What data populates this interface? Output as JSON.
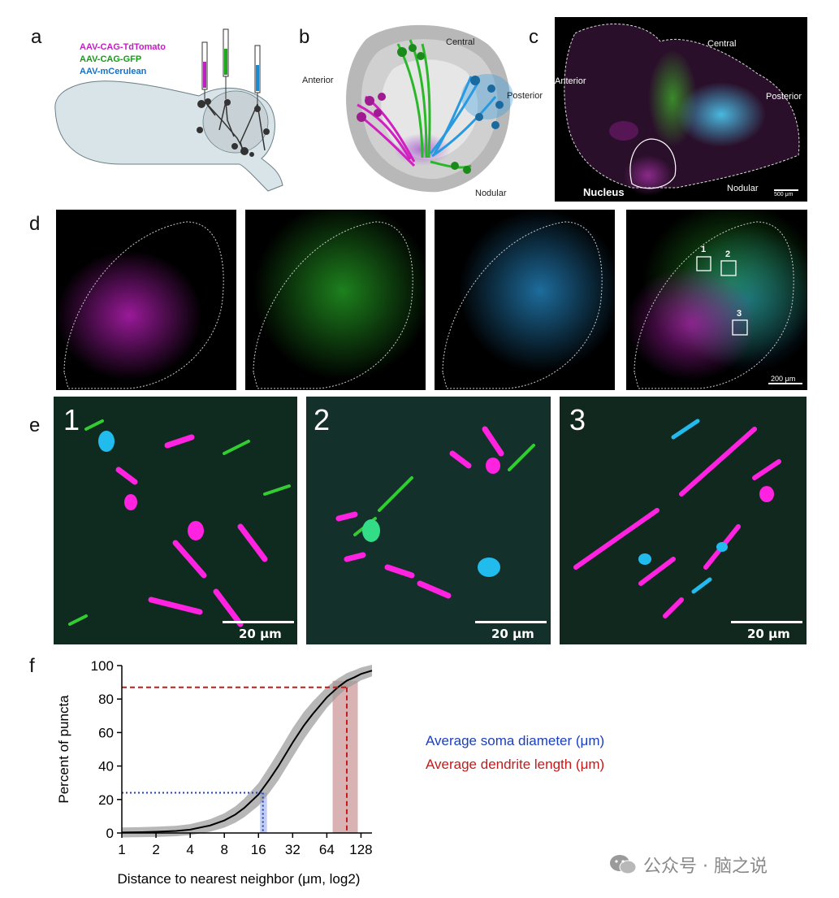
{
  "panels": {
    "a": "a",
    "b": "b",
    "c": "c",
    "d": "d",
    "e": "e",
    "f": "f"
  },
  "panel_a": {
    "legend": [
      {
        "text": "AAV-CAG-TdTomato",
        "color": "#c020c0"
      },
      {
        "text": "AAV-CAG-GFP",
        "color": "#1a9a1a"
      },
      {
        "text": "AAV-mCerulean",
        "color": "#1a70c0"
      }
    ]
  },
  "panel_b": {
    "anterior": "Anterior",
    "central": "Central",
    "posterior": "Posterior",
    "nodular": "Nodular"
  },
  "panel_c": {
    "anterior": "Anterior",
    "central": "Central",
    "posterior": "Posterior",
    "nodular": "Nodular",
    "nucleus": "Nucleus",
    "scale": "500 μm"
  },
  "panel_d": {
    "boxes": [
      "1",
      "2",
      "3"
    ],
    "scale": "200 μm"
  },
  "panel_e": {
    "insets": [
      "1",
      "2",
      "3"
    ],
    "scale": "20 μm"
  },
  "chart_data": {
    "type": "line",
    "xlabel": "Distance to nearest neighbor (μm, log2)",
    "ylabel": "Percent of puncta",
    "x_ticks": [
      "1",
      "2",
      "4",
      "8",
      "16",
      "32",
      "64",
      "128"
    ],
    "y_ticks": [
      "0",
      "20",
      "40",
      "60",
      "80",
      "100"
    ],
    "xlim": [
      1,
      160
    ],
    "ylim": [
      0,
      100
    ],
    "x_scale": "log2",
    "series": [
      {
        "x": [
          1,
          1.5,
          2,
          3,
          4,
          6,
          8,
          10,
          12,
          16,
          20,
          24,
          32,
          40,
          48,
          64,
          80,
          96,
          112,
          128,
          160
        ],
        "y": [
          0.3,
          0.5,
          0.7,
          1.2,
          2,
          4.5,
          7.5,
          11,
          15,
          23,
          32,
          40,
          54,
          64,
          71,
          81,
          87,
          91,
          93,
          95,
          97
        ]
      }
    ],
    "soma": {
      "x": 17.5,
      "y": 24
    },
    "dendrite": {
      "x": 96,
      "y": 87
    },
    "legend": [
      {
        "text": "Average soma diameter (μm)",
        "color": "#1a3fc0"
      },
      {
        "text": "Average dendrite length (μm)",
        "color": "#c41a1a"
      }
    ]
  },
  "watermark": "公众号 · 脑之说"
}
